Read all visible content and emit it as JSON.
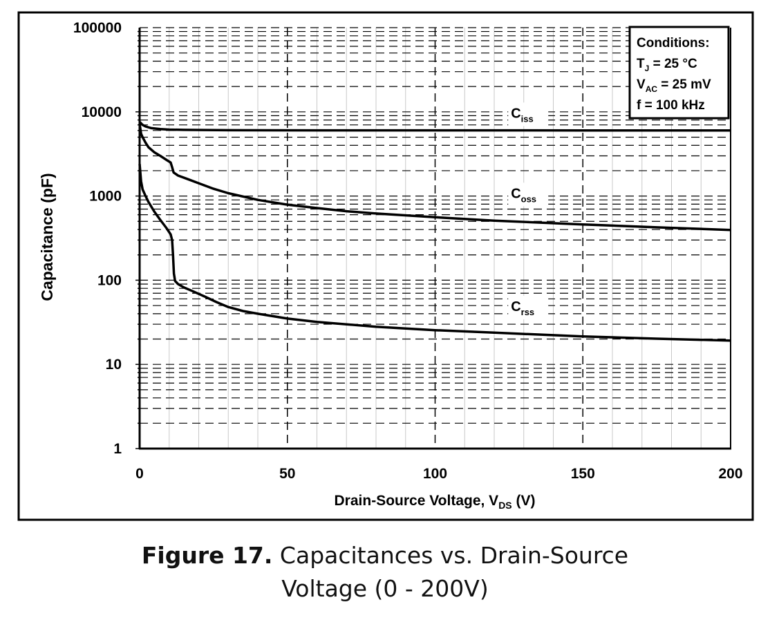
{
  "chart_data": {
    "type": "line",
    "x_scale": "linear",
    "y_scale": "log",
    "xlim": [
      0,
      200
    ],
    "ylim": [
      1,
      100000
    ],
    "x_ticks": [
      "0",
      "50",
      "100",
      "150",
      "200"
    ],
    "y_ticks": [
      "1",
      "10",
      "100",
      "1000",
      "10000",
      "100000"
    ],
    "xlabel": {
      "main": "Drain-Source Voltage, V",
      "sub": "DS",
      "tail": " (V)"
    },
    "ylabel": "Capacitance (pF)",
    "grid": true,
    "legend": {
      "placement": "top-right",
      "title": "Conditions:",
      "lines": [
        {
          "main": "T",
          "sub": "J",
          "tail": " = 25 °C"
        },
        {
          "main": "V",
          "sub": "AC",
          "tail": " = 25 mV"
        },
        {
          "main": "f = 100 kHz",
          "sub": "",
          "tail": ""
        }
      ]
    },
    "series": [
      {
        "name": "C",
        "sub": "iss",
        "label_pos": {
          "x": 128,
          "y": 8500
        },
        "points": [
          [
            0,
            7600
          ],
          [
            1,
            7000
          ],
          [
            2,
            6700
          ],
          [
            4,
            6400
          ],
          [
            7,
            6250
          ],
          [
            10,
            6150
          ],
          [
            15,
            6100
          ],
          [
            30,
            6050
          ],
          [
            60,
            6030
          ],
          [
            100,
            6020
          ],
          [
            150,
            6010
          ],
          [
            200,
            6000
          ]
        ]
      },
      {
        "name": "C",
        "sub": "oss",
        "label_pos": {
          "x": 128,
          "y": 950
        },
        "points": [
          [
            0,
            7200
          ],
          [
            0.5,
            5500
          ],
          [
            1,
            5000
          ],
          [
            2,
            4300
          ],
          [
            3,
            3800
          ],
          [
            5,
            3300
          ],
          [
            7,
            3000
          ],
          [
            9,
            2700
          ],
          [
            10.5,
            2500
          ],
          [
            11,
            2200
          ],
          [
            11.5,
            1900
          ],
          [
            13,
            1750
          ],
          [
            16,
            1600
          ],
          [
            20,
            1420
          ],
          [
            25,
            1220
          ],
          [
            30,
            1080
          ],
          [
            40,
            900
          ],
          [
            50,
            790
          ],
          [
            60,
            720
          ],
          [
            70,
            660
          ],
          [
            80,
            620
          ],
          [
            100,
            560
          ],
          [
            120,
            510
          ],
          [
            150,
            460
          ],
          [
            175,
            425
          ],
          [
            200,
            395
          ]
        ]
      },
      {
        "name": "C",
        "sub": "rss",
        "label_pos": {
          "x": 128,
          "y": 43
        },
        "points": [
          [
            0,
            2400
          ],
          [
            0.5,
            1500
          ],
          [
            1,
            1200
          ],
          [
            2,
            1000
          ],
          [
            3,
            850
          ],
          [
            5,
            650
          ],
          [
            7,
            520
          ],
          [
            9,
            420
          ],
          [
            10.5,
            350
          ],
          [
            11,
            300
          ],
          [
            11.3,
            200
          ],
          [
            11.6,
            120
          ],
          [
            12,
            98
          ],
          [
            13,
            90
          ],
          [
            15,
            82
          ],
          [
            18,
            74
          ],
          [
            22,
            64
          ],
          [
            26,
            55
          ],
          [
            30,
            48
          ],
          [
            35,
            43
          ],
          [
            40,
            40
          ],
          [
            50,
            35
          ],
          [
            60,
            32
          ],
          [
            80,
            28
          ],
          [
            100,
            25.5
          ],
          [
            120,
            23.8
          ],
          [
            150,
            21.5
          ],
          [
            175,
            20.2
          ],
          [
            200,
            19.2
          ]
        ]
      }
    ]
  },
  "caption": {
    "bold": "Figure 17.",
    "rest_line1": " Capacitances vs. Drain-Source",
    "line2": "Voltage (0 - 200V)"
  }
}
